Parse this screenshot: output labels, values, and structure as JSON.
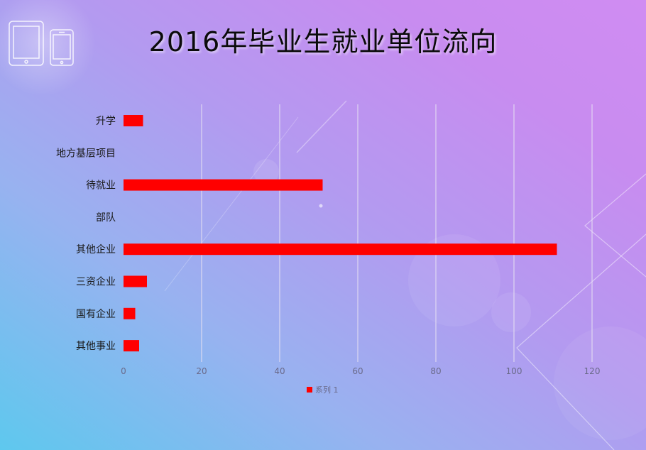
{
  "chart_data": {
    "type": "bar",
    "orientation": "horizontal",
    "title": "2016年毕业生就业单位流向",
    "categories": [
      "升学",
      "地方基层项目",
      "待就业",
      "部队",
      "其他企业",
      "三资企业",
      "国有企业",
      "其他事业"
    ],
    "series": [
      {
        "name": "系列 1",
        "values": [
          5,
          0,
          51,
          0,
          111,
          6,
          3,
          4
        ]
      }
    ],
    "xlim": [
      0,
      120
    ],
    "xticks": [
      0,
      20,
      40,
      60,
      80,
      100,
      120
    ],
    "grid": true,
    "legend": "bottom",
    "colors": {
      "bar": "#ff0000",
      "grid": "#e6e0f2"
    }
  },
  "decor": {
    "device_icons": [
      "tablet-icon",
      "phone-icon"
    ]
  }
}
